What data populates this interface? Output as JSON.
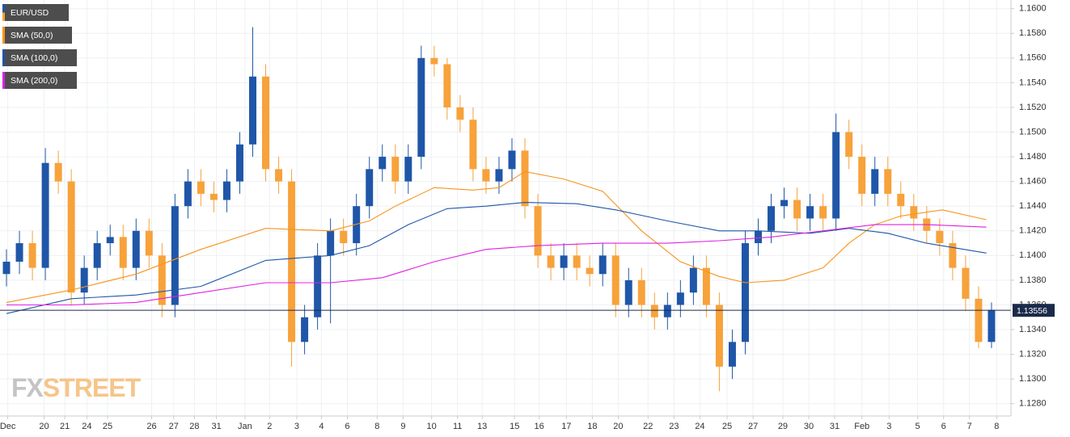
{
  "chart_data": {
    "type": "candlestick",
    "name": "EUR/USD",
    "up_color": "#1f56a8",
    "down_color": "#f7a23a",
    "x": [
      0,
      1,
      2,
      3,
      4,
      5,
      6,
      7,
      8,
      9,
      10,
      11,
      12,
      13,
      14,
      15,
      16,
      17,
      18,
      19,
      20,
      21,
      22,
      23,
      24,
      25,
      26,
      27,
      28,
      29,
      30,
      31,
      32,
      33,
      34,
      35,
      36,
      37,
      38,
      39,
      40,
      41,
      42,
      43,
      44,
      45,
      46,
      47,
      48,
      49,
      50,
      51,
      52,
      53,
      54,
      55,
      56,
      57,
      58,
      59,
      60,
      61,
      62,
      63,
      64,
      65,
      66,
      67,
      68,
      69,
      70,
      71,
      72,
      73,
      74,
      75,
      76
    ],
    "open": [
      1.1385,
      1.1395,
      1.141,
      1.139,
      1.1475,
      1.146,
      1.137,
      1.139,
      1.141,
      1.1415,
      1.139,
      1.142,
      1.14,
      1.136,
      1.144,
      1.146,
      1.145,
      1.1445,
      1.146,
      1.149,
      1.1545,
      1.147,
      1.146,
      1.133,
      1.135,
      1.14,
      1.142,
      1.141,
      1.144,
      1.147,
      1.148,
      1.146,
      1.148,
      1.156,
      1.1555,
      1.152,
      1.151,
      1.147,
      1.146,
      1.147,
      1.1485,
      1.144,
      1.14,
      1.139,
      1.14,
      1.139,
      1.1385,
      1.14,
      1.136,
      1.138,
      1.136,
      1.135,
      1.136,
      1.137,
      1.139,
      1.136,
      1.131,
      1.133,
      1.141,
      1.142,
      1.144,
      1.1445,
      1.143,
      1.144,
      1.143,
      1.15,
      1.148,
      1.145,
      1.147,
      1.145,
      1.144,
      1.143,
      1.142,
      1.141,
      1.139,
      1.1365,
      1.133
    ],
    "high": [
      1.1405,
      1.142,
      1.142,
      1.1487,
      1.1485,
      1.147,
      1.14,
      1.142,
      1.1425,
      1.1425,
      1.143,
      1.143,
      1.141,
      1.145,
      1.147,
      1.147,
      1.146,
      1.147,
      1.15,
      1.1585,
      1.1555,
      1.148,
      1.147,
      1.136,
      1.141,
      1.143,
      1.143,
      1.145,
      1.148,
      1.149,
      1.149,
      1.149,
      1.157,
      1.157,
      1.156,
      1.153,
      1.152,
      1.148,
      1.148,
      1.1495,
      1.1495,
      1.145,
      1.141,
      1.141,
      1.141,
      1.14,
      1.141,
      1.141,
      1.139,
      1.139,
      1.137,
      1.137,
      1.138,
      1.14,
      1.14,
      1.137,
      1.134,
      1.142,
      1.143,
      1.145,
      1.1455,
      1.1455,
      1.145,
      1.145,
      1.1515,
      1.151,
      1.149,
      1.148,
      1.148,
      1.146,
      1.145,
      1.144,
      1.143,
      1.142,
      1.14,
      1.1375,
      1.1362
    ],
    "low": [
      1.1375,
      1.1385,
      1.138,
      1.138,
      1.145,
      1.136,
      1.136,
      1.138,
      1.14,
      1.138,
      1.138,
      1.139,
      1.135,
      1.135,
      1.143,
      1.144,
      1.1435,
      1.1435,
      1.145,
      1.148,
      1.146,
      1.145,
      1.131,
      1.132,
      1.134,
      1.1345,
      1.14,
      1.14,
      1.143,
      1.146,
      1.145,
      1.145,
      1.147,
      1.1545,
      1.151,
      1.15,
      1.146,
      1.145,
      1.145,
      1.146,
      1.143,
      1.139,
      1.138,
      1.138,
      1.138,
      1.1375,
      1.1375,
      1.135,
      1.135,
      1.135,
      1.134,
      1.134,
      1.135,
      1.136,
      1.135,
      1.129,
      1.13,
      1.132,
      1.14,
      1.141,
      1.143,
      1.142,
      1.142,
      1.142,
      1.142,
      1.147,
      1.144,
      1.144,
      1.144,
      1.143,
      1.142,
      1.141,
      1.14,
      1.138,
      1.1355,
      1.1325,
      1.1325
    ],
    "close": [
      1.1395,
      1.141,
      1.139,
      1.1475,
      1.146,
      1.137,
      1.139,
      1.141,
      1.1415,
      1.139,
      1.142,
      1.14,
      1.136,
      1.144,
      1.146,
      1.145,
      1.1445,
      1.146,
      1.149,
      1.1545,
      1.147,
      1.146,
      1.133,
      1.135,
      1.14,
      1.142,
      1.141,
      1.144,
      1.147,
      1.148,
      1.146,
      1.148,
      1.156,
      1.1555,
      1.152,
      1.151,
      1.147,
      1.146,
      1.147,
      1.1485,
      1.144,
      1.14,
      1.139,
      1.14,
      1.139,
      1.1385,
      1.14,
      1.136,
      1.138,
      1.136,
      1.135,
      1.136,
      1.137,
      1.139,
      1.136,
      1.131,
      1.133,
      1.141,
      1.142,
      1.144,
      1.1445,
      1.143,
      1.144,
      1.143,
      1.15,
      1.148,
      1.145,
      1.147,
      1.145,
      1.144,
      1.143,
      1.142,
      1.141,
      1.139,
      1.1365,
      1.133,
      1.1356
    ],
    "series": [
      {
        "name": "SMA (50,0)",
        "color": "#f7941d",
        "x": [
          0,
          5,
          10,
          15,
          20,
          25,
          28,
          30,
          33,
          36,
          38,
          40,
          43,
          46,
          49,
          52,
          55,
          57,
          60,
          63,
          65,
          67,
          69,
          72.2,
          75.6
        ],
        "values": [
          1.1362,
          1.1372,
          1.1385,
          1.1405,
          1.1422,
          1.142,
          1.1428,
          1.144,
          1.1455,
          1.1453,
          1.1455,
          1.1468,
          1.1462,
          1.1452,
          1.142,
          1.1395,
          1.1383,
          1.1378,
          1.138,
          1.139,
          1.141,
          1.1425,
          1.1432,
          1.1437,
          1.1429
        ]
      },
      {
        "name": "SMA (100,0)",
        "color": "#1f56a8",
        "x": [
          0,
          5,
          10,
          15,
          20,
          25,
          28,
          31,
          34,
          37,
          40,
          44,
          47,
          51,
          55,
          58,
          62,
          65,
          68,
          71,
          75.6
        ],
        "values": [
          1.1353,
          1.1365,
          1.1368,
          1.1375,
          1.1396,
          1.14,
          1.1408,
          1.1425,
          1.1438,
          1.144,
          1.1443,
          1.1442,
          1.1437,
          1.1428,
          1.142,
          1.142,
          1.1418,
          1.1422,
          1.1418,
          1.141,
          1.1402
        ]
      },
      {
        "name": "SMA (200,0)",
        "color": "#e020e0",
        "x": [
          0,
          5,
          10,
          15,
          20,
          25,
          29,
          33,
          37,
          41,
          46,
          51,
          55,
          59,
          63,
          67,
          71,
          75.6
        ],
        "values": [
          1.136,
          1.136,
          1.1362,
          1.137,
          1.1378,
          1.1378,
          1.1382,
          1.1395,
          1.1405,
          1.1408,
          1.141,
          1.141,
          1.1412,
          1.1415,
          1.142,
          1.1425,
          1.1425,
          1.1423
        ]
      }
    ],
    "current_price": 1.13556,
    "price_color": "#1b2a4a",
    "xlim": [
      -0.5,
      77.5
    ],
    "ylim": [
      1.127,
      1.1607
    ],
    "grid": true,
    "xticks": [
      {
        "value": 0.1,
        "label": "Dec"
      },
      {
        "value": 2.9,
        "label": "20"
      },
      {
        "value": 4.5,
        "label": "21"
      },
      {
        "value": 6.2,
        "label": "24"
      },
      {
        "value": 7.8,
        "label": "25"
      },
      {
        "value": 11.2,
        "label": "26"
      },
      {
        "value": 12.9,
        "label": "27"
      },
      {
        "value": 14.5,
        "label": "28"
      },
      {
        "value": 16.2,
        "label": "31"
      },
      {
        "value": 18.4,
        "label": "Jan"
      },
      {
        "value": 20.3,
        "label": "2"
      },
      {
        "value": 22.4,
        "label": "3"
      },
      {
        "value": 24.3,
        "label": "4"
      },
      {
        "value": 26.3,
        "label": "6"
      },
      {
        "value": 28.6,
        "label": "8"
      },
      {
        "value": 30.6,
        "label": "9"
      },
      {
        "value": 32.8,
        "label": "10"
      },
      {
        "value": 34.8,
        "label": "11"
      },
      {
        "value": 36.7,
        "label": "13"
      },
      {
        "value": 39.2,
        "label": "15"
      },
      {
        "value": 41.1,
        "label": "16"
      },
      {
        "value": 43.2,
        "label": "17"
      },
      {
        "value": 45.2,
        "label": "18"
      },
      {
        "value": 47.2,
        "label": "20"
      },
      {
        "value": 49.5,
        "label": "22"
      },
      {
        "value": 51.5,
        "label": "23"
      },
      {
        "value": 53.5,
        "label": "24"
      },
      {
        "value": 55.6,
        "label": "25"
      },
      {
        "value": 57.6,
        "label": "27"
      },
      {
        "value": 59.9,
        "label": "29"
      },
      {
        "value": 61.9,
        "label": "30"
      },
      {
        "value": 63.9,
        "label": "31"
      },
      {
        "value": 66.0,
        "label": "Feb"
      },
      {
        "value": 68.1,
        "label": "3"
      },
      {
        "value": 70.3,
        "label": "5"
      },
      {
        "value": 72.3,
        "label": "6"
      },
      {
        "value": 74.3,
        "label": "7"
      },
      {
        "value": 76.4,
        "label": "8"
      }
    ],
    "yticks": [
      {
        "value": 1.128,
        "label": "1.1280"
      },
      {
        "value": 1.13,
        "label": "1.1300"
      },
      {
        "value": 1.132,
        "label": "1.1320"
      },
      {
        "value": 1.134,
        "label": "1.1340"
      },
      {
        "value": 1.136,
        "label": "1.1360"
      },
      {
        "value": 1.138,
        "label": "1.1380"
      },
      {
        "value": 1.14,
        "label": "1.1400"
      },
      {
        "value": 1.142,
        "label": "1.1420"
      },
      {
        "value": 1.144,
        "label": "1.1440"
      },
      {
        "value": 1.146,
        "label": "1.1460"
      },
      {
        "value": 1.148,
        "label": "1.1480"
      },
      {
        "value": 1.15,
        "label": "1.1500"
      },
      {
        "value": 1.152,
        "label": "1.1520"
      },
      {
        "value": 1.154,
        "label": "1.1540"
      },
      {
        "value": 1.156,
        "label": "1.1560"
      },
      {
        "value": 1.158,
        "label": "1.1580"
      },
      {
        "value": 1.16,
        "label": "1.1600"
      }
    ],
    "watermark": [
      "FX",
      "STREET"
    ]
  }
}
